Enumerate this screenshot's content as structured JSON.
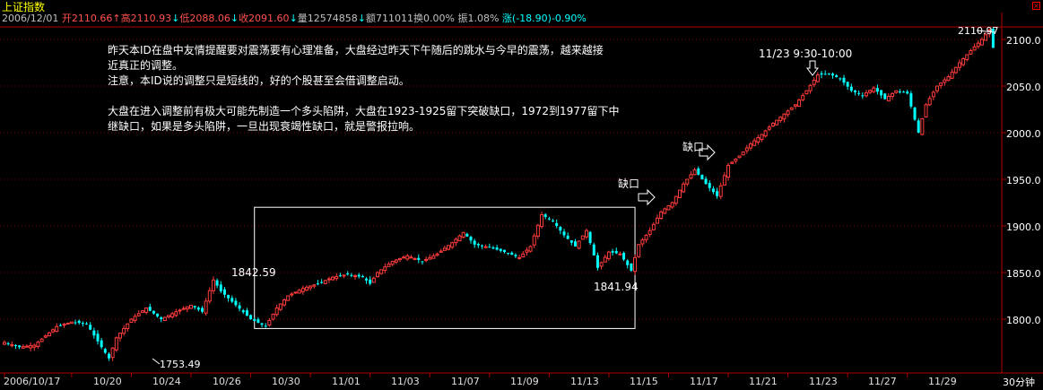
{
  "window": {
    "title": "上证指数",
    "close_icon": "close-icon"
  },
  "info_bar": {
    "date": "2006/12/01",
    "open": "开2110.66",
    "high": "高2110.93",
    "low": "低2088.06",
    "close": "收2091.60",
    "volume": "量12574858",
    "amount": "额711011",
    "turnover": "换0.00%",
    "amplitude": "振1.08%",
    "change": "涨(-18.90)-0.90%",
    "arrows": [
      "↑",
      "↓",
      "↓",
      "↓",
      "↓"
    ]
  },
  "annotation": {
    "para1_line1": "昨天本ID在盘中友情提醒要对震荡要有心理准备，大盘经过昨天下午随后的跳水与今早的震荡，越来越接",
    "para1_line2": "近真正的调整。",
    "para1_line3": "注意，本ID说的调整只是短线的，好的个股甚至会借调整启动。",
    "para2_line1": "大盘在进入调整前有极大可能先制造一个多头陷阱，大盘在1923-1925留下突破缺口，1972到1977留下中",
    "para2_line2": "继缺口，如果是多头陷阱，一旦出现衰竭性缺口，就是警报拉响。"
  },
  "chart_labels": {
    "high_peak": "2110.97",
    "box_left_high": "1842.59",
    "box_right_low": "1841.94",
    "low_point": "1753.49",
    "time_note": "11/23 9:30-10:00",
    "gap1": "缺口",
    "gap2": "缺口"
  },
  "period": "30分钟",
  "chart_data": {
    "type": "candlestick",
    "title": "上证指数",
    "ylim": [
      1740,
      2125
    ],
    "yticks": [
      "2100.0",
      "2050.0",
      "2000.0",
      "1950.0",
      "1900.0",
      "1850.0",
      "1800.0"
    ],
    "ytick_values": [
      2100,
      2050,
      2000,
      1950,
      1900,
      1850,
      1800
    ],
    "xticks": [
      "2006/10/17",
      "10/20",
      "10/24",
      "10/26",
      "10/30",
      "11/01",
      "11/03",
      "11/07",
      "11/09",
      "11/13",
      "11/15",
      "11/17",
      "11/21",
      "11/23",
      "11/27",
      "11/29"
    ],
    "xtick_bars": [
      0,
      18,
      34,
      50,
      66,
      82,
      98,
      114,
      130,
      146,
      162,
      178,
      194,
      210,
      226,
      242
    ],
    "colors": {
      "up": "#ff3c3c",
      "down": "#00ffff",
      "axis": "#b00000",
      "box": "#ffffff"
    },
    "box": {
      "from_bar": 67,
      "to_bar": 169,
      "low": 1790,
      "high": 1920
    },
    "close_anchors": [
      [
        0,
        1775
      ],
      [
        4,
        1770
      ],
      [
        8,
        1772
      ],
      [
        14,
        1792
      ],
      [
        18,
        1797
      ],
      [
        22,
        1795
      ],
      [
        26,
        1770
      ],
      [
        28,
        1758
      ],
      [
        30,
        1780
      ],
      [
        34,
        1800
      ],
      [
        38,
        1812
      ],
      [
        42,
        1800
      ],
      [
        46,
        1808
      ],
      [
        50,
        1815
      ],
      [
        53,
        1808
      ],
      [
        56,
        1842
      ],
      [
        58,
        1830
      ],
      [
        62,
        1815
      ],
      [
        66,
        1800
      ],
      [
        70,
        1792
      ],
      [
        73,
        1812
      ],
      [
        76,
        1825
      ],
      [
        80,
        1833
      ],
      [
        84,
        1838
      ],
      [
        88,
        1845
      ],
      [
        92,
        1848
      ],
      [
        96,
        1845
      ],
      [
        98,
        1838
      ],
      [
        100,
        1850
      ],
      [
        104,
        1862
      ],
      [
        108,
        1868
      ],
      [
        112,
        1862
      ],
      [
        116,
        1870
      ],
      [
        120,
        1882
      ],
      [
        123,
        1893
      ],
      [
        126,
        1880
      ],
      [
        130,
        1877
      ],
      [
        134,
        1872
      ],
      [
        138,
        1866
      ],
      [
        141,
        1878
      ],
      [
        144,
        1912
      ],
      [
        147,
        1905
      ],
      [
        150,
        1890
      ],
      [
        153,
        1878
      ],
      [
        156,
        1895
      ],
      [
        159,
        1855
      ],
      [
        162,
        1872
      ],
      [
        165,
        1870
      ],
      [
        168,
        1852
      ],
      [
        170,
        1880
      ],
      [
        173,
        1895
      ],
      [
        176,
        1915
      ],
      [
        179,
        1925
      ],
      [
        182,
        1945
      ],
      [
        185,
        1960
      ],
      [
        188,
        1945
      ],
      [
        191,
        1932
      ],
      [
        194,
        1965
      ],
      [
        197,
        1975
      ],
      [
        200,
        1988
      ],
      [
        203,
        1998
      ],
      [
        206,
        2010
      ],
      [
        209,
        2020
      ],
      [
        212,
        2030
      ],
      [
        215,
        2045
      ],
      [
        218,
        2062
      ],
      [
        221,
        2063
      ],
      [
        224,
        2058
      ],
      [
        227,
        2045
      ],
      [
        230,
        2040
      ],
      [
        233,
        2048
      ],
      [
        236,
        2036
      ],
      [
        239,
        2045
      ],
      [
        242,
        2042
      ],
      [
        245,
        2000
      ],
      [
        247,
        2030
      ],
      [
        250,
        2050
      ],
      [
        253,
        2060
      ],
      [
        256,
        2075
      ],
      [
        259,
        2088
      ],
      [
        262,
        2100
      ],
      [
        264,
        2110
      ],
      [
        265,
        2091
      ]
    ]
  }
}
